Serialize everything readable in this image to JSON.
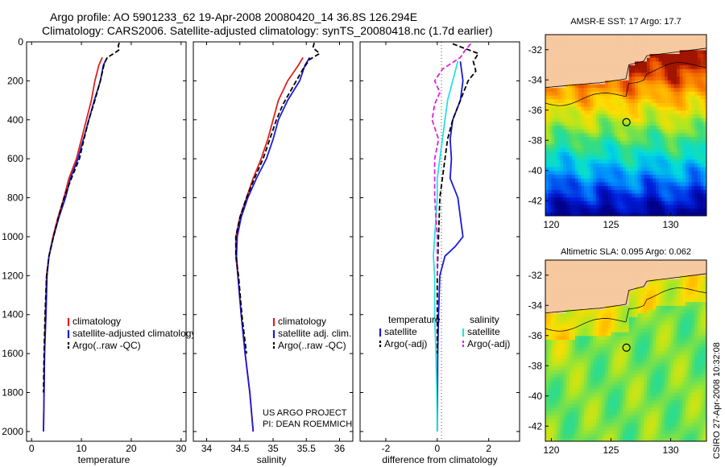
{
  "header": {
    "title_line1": "Argo profile: AO 5901233_62 19-Apr-2008 20080420_14 36.8S 126.294E",
    "title_line2": "Climatology: CARS2006. Satellite-adjusted climatology: synTS_20080418.nc (1.7d earlier)"
  },
  "side_label": "CSIRO 27-Apr-2008 10:32:08",
  "colors": {
    "climatology": "#e0201c",
    "satellite": "#1a1ad6",
    "argo": "#000000",
    "satellite_diff": "#29e0e0",
    "argo_salinity_diff": "#e020e0",
    "land": "#f7c9a0"
  },
  "chart_data": [
    {
      "id": "temperature",
      "type": "line",
      "xlabel": "temperature",
      "xlim": [
        -1,
        31
      ],
      "ylim": [
        2050,
        0
      ],
      "xticks": [
        0,
        10,
        20,
        30
      ],
      "yticks": [
        0,
        200,
        400,
        600,
        800,
        1000,
        1200,
        1400,
        1600,
        1800,
        2000
      ],
      "series": [
        {
          "name": "climatology",
          "color": "#e0201c",
          "x": [
            14.2,
            13.5,
            12.7,
            12.0,
            11.0,
            10.0,
            9.0,
            7.5,
            6.5,
            5.3,
            4.3,
            3.5,
            3.0,
            2.8,
            2.6,
            2.5,
            2.4
          ],
          "y": [
            80,
            120,
            200,
            300,
            400,
            500,
            600,
            700,
            800,
            900,
            1000,
            1100,
            1200,
            1400,
            1600,
            1800,
            2000
          ]
        },
        {
          "name": "satellite-adjusted climatology",
          "color": "#1a1ad6",
          "x": [
            15.2,
            14.4,
            13.8,
            12.6,
            11.5,
            10.4,
            9.3,
            7.8,
            6.8,
            5.5,
            4.4,
            3.5,
            3.1,
            2.9,
            2.6,
            2.5,
            2.4
          ],
          "y": [
            80,
            120,
            200,
            300,
            400,
            500,
            600,
            700,
            800,
            900,
            1000,
            1100,
            1200,
            1400,
            1600,
            1800,
            2000
          ]
        },
        {
          "name": "Argo(..raw -QC)",
          "color": "#000000",
          "dash": "6,3",
          "x": [
            17.6,
            17.4,
            17.6,
            16.5,
            15.2,
            14.6,
            13.8,
            12.7,
            11.5,
            10.5,
            9.6,
            8.0,
            6.5,
            5.4,
            4.4,
            3.5,
            3.0,
            2.7,
            2.5,
            2.4
          ],
          "y": [
            5,
            20,
            40,
            60,
            80,
            110,
            200,
            300,
            400,
            500,
            600,
            700,
            800,
            900,
            1000,
            1100,
            1200,
            1400,
            1600,
            1800
          ]
        }
      ],
      "legend": [
        "climatology",
        "satellite-adjusted climatology",
        "Argo(..raw -QC)"
      ]
    },
    {
      "id": "salinity",
      "type": "line",
      "xlabel": "salinity",
      "xlim": [
        33.8,
        36.2
      ],
      "ylim": [
        2050,
        0
      ],
      "xticks": [
        34,
        34.5,
        35,
        35.5,
        36
      ],
      "xticklabels": [
        "34",
        "34.5",
        "35",
        "35.5",
        "36"
      ],
      "series": [
        {
          "name": "climatology",
          "color": "#e0201c",
          "x": [
            35.45,
            35.38,
            35.22,
            35.08,
            35.0,
            34.92,
            34.82,
            34.7,
            34.6,
            34.5,
            34.44,
            34.44,
            34.47,
            34.52,
            34.58,
            34.65,
            34.7
          ],
          "y": [
            80,
            120,
            200,
            300,
            400,
            500,
            600,
            700,
            800,
            900,
            1000,
            1100,
            1200,
            1400,
            1600,
            1800,
            2000
          ]
        },
        {
          "name": "satellite adj. clim.",
          "color": "#1a1ad6",
          "x": [
            35.55,
            35.48,
            35.4,
            35.22,
            35.08,
            35.0,
            34.9,
            34.75,
            34.62,
            34.52,
            34.46,
            34.45,
            34.47,
            34.52,
            34.58,
            34.65,
            34.7
          ],
          "y": [
            80,
            120,
            200,
            300,
            400,
            500,
            600,
            700,
            800,
            900,
            1000,
            1100,
            1200,
            1400,
            1600,
            1800,
            2000
          ]
        },
        {
          "name": "Argo(..raw -QC)",
          "color": "#000000",
          "dash": "6,3",
          "x": [
            35.62,
            35.6,
            35.7,
            35.55,
            35.45,
            35.3,
            35.15,
            35.05,
            34.95,
            34.85,
            34.72,
            34.6,
            34.5,
            34.44,
            34.44,
            34.48,
            34.53,
            34.6
          ],
          "y": [
            5,
            30,
            60,
            90,
            140,
            230,
            320,
            400,
            500,
            600,
            700,
            800,
            900,
            1000,
            1100,
            1200,
            1400,
            1600
          ]
        }
      ],
      "legend": [
        "climatology",
        "satellite adj. clim.",
        "Argo(..raw -QC)"
      ],
      "annotation": [
        "US ARGO PROJECT",
        "PI: DEAN ROEMMICH"
      ]
    },
    {
      "id": "difference",
      "type": "line",
      "xlabel": "difference from climatology",
      "xlim": [
        -3,
        3.2
      ],
      "ylim": [
        2050,
        0
      ],
      "xticks": [
        -2,
        0,
        2
      ],
      "series": [
        {
          "name": "temperature satellite",
          "color": "#1a1ad6",
          "x": [
            0.9,
            1.0,
            0.9,
            0.6,
            0.5,
            0.55,
            0.5,
            0.8,
            0.9,
            1.0,
            0.7,
            0.3,
            0.1,
            0.05,
            0.02,
            0.01,
            0.0
          ],
          "y": [
            100,
            200,
            300,
            400,
            500,
            600,
            700,
            800,
            900,
            1000,
            1050,
            1100,
            1200,
            1400,
            1600,
            1800,
            2000
          ]
        },
        {
          "name": "temperature Argo(-adj)",
          "color": "#000000",
          "dash": "6,3",
          "x": [
            0.6,
            1.0,
            1.6,
            1.4,
            1.5,
            1.2,
            0.9,
            0.6,
            0.4,
            0.3,
            0.2,
            0.1,
            0.05,
            0.0,
            0.0,
            0.0
          ],
          "y": [
            10,
            30,
            60,
            100,
            150,
            200,
            300,
            400,
            500,
            600,
            700,
            800,
            1000,
            1200,
            1400,
            1600
          ]
        },
        {
          "name": "salinity satellite",
          "color": "#29e0e0",
          "x": [
            0.8,
            0.7,
            0.6,
            0.4,
            0.3,
            0.2,
            0.1,
            0.0,
            0.0,
            -0.1,
            -0.15,
            -0.1,
            -0.1,
            -0.05,
            -0.02,
            0.0
          ],
          "y": [
            100,
            150,
            200,
            300,
            400,
            500,
            600,
            700,
            800,
            1000,
            1100,
            1200,
            1400,
            1600,
            1800,
            2000
          ]
        },
        {
          "name": "salinity Argo(-adj)",
          "color": "#e020e0",
          "dash": "6,3",
          "x": [
            1.3,
            1.1,
            0.9,
            0.2,
            -0.1,
            0.1,
            -0.1,
            -0.2,
            0.05,
            -0.1,
            -0.1,
            0.0,
            0.0
          ],
          "y": [
            10,
            40,
            80,
            140,
            200,
            260,
            320,
            400,
            500,
            600,
            800,
            1000,
            1200
          ]
        }
      ],
      "legend_groups": [
        {
          "heading": "temperature",
          "items": [
            "satellite",
            "Argo(-adj)"
          ]
        },
        {
          "heading": "salinity",
          "items": [
            "satellite",
            "Argo(-adj)"
          ]
        }
      ]
    },
    {
      "id": "sst_map",
      "type": "heatmap",
      "title": "AMSR-E SST: 17 Argo: 17.7",
      "xlim": [
        119.5,
        133
      ],
      "ylim": [
        -43,
        -31
      ],
      "xticks": [
        120,
        125,
        130
      ],
      "yticks": [
        -32,
        -34,
        -36,
        -38,
        -40,
        -42
      ],
      "marker": {
        "lon": 126.294,
        "lat": -36.8
      }
    },
    {
      "id": "sla_map",
      "type": "heatmap",
      "title": "Altimetric SLA: 0.095 Argo: 0.062",
      "xlim": [
        119.5,
        133
      ],
      "ylim": [
        -43,
        -31
      ],
      "xticks": [
        120,
        125,
        130
      ],
      "yticks": [
        -32,
        -34,
        -36,
        -38,
        -40,
        -42
      ],
      "marker": {
        "lon": 126.294,
        "lat": -36.8
      }
    }
  ]
}
